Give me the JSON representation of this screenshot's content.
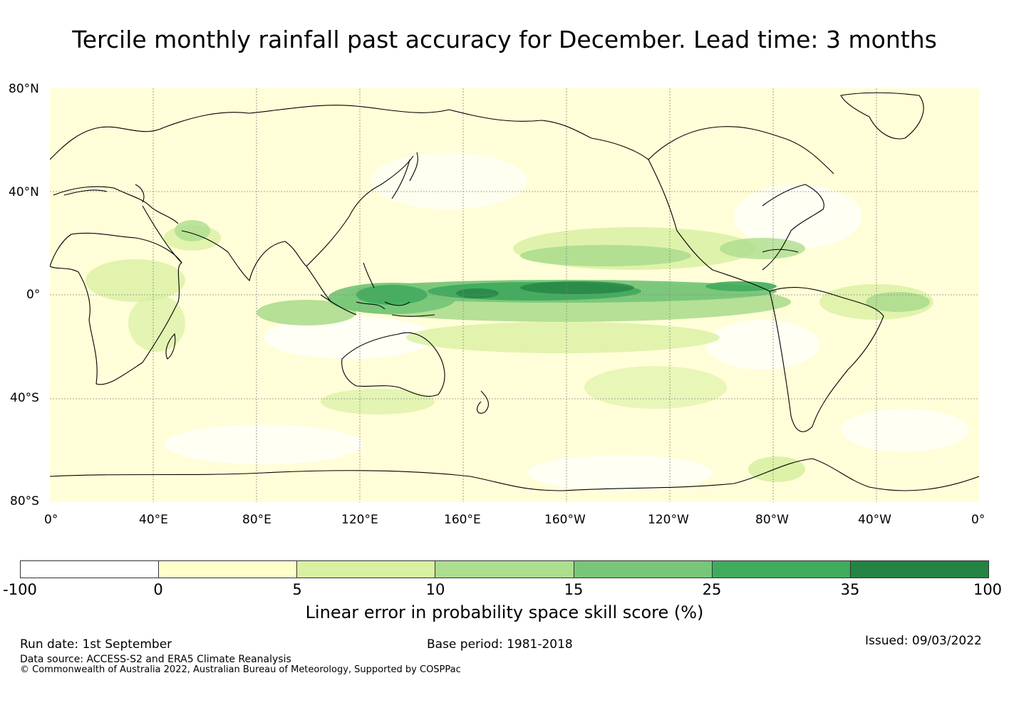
{
  "title": "Tercile monthly rainfall past accuracy for December. Lead time: 3 months",
  "map": {
    "lat_labels": [
      "80°N",
      "40°N",
      "0°",
      "40°S",
      "80°S"
    ],
    "lon_labels": [
      "0°",
      "40°E",
      "80°E",
      "120°E",
      "160°E",
      "160°W",
      "120°W",
      "80°W",
      "40°W",
      "0°"
    ]
  },
  "colorbar": {
    "ticks": [
      "-100",
      "0",
      "5",
      "10",
      "15",
      "25",
      "35",
      "100"
    ],
    "colors": [
      "#ffffff",
      "#ffffcc",
      "#d9f0a3",
      "#addd8e",
      "#78c679",
      "#41ab5d",
      "#238443"
    ],
    "label": "Linear error in probability space skill score (%)"
  },
  "footer": {
    "run_date": "Run date: 1st September",
    "base_period": "Base period: 1981-2018",
    "issued": "Issued: 09/03/2022",
    "data_source": "Data source: ACCESS-S2 and ERA5 Climate Reanalysis",
    "copyright": "© Commonwealth of Australia 2022, Australian Bureau of Meteorology, Supported by COSPPac"
  }
}
